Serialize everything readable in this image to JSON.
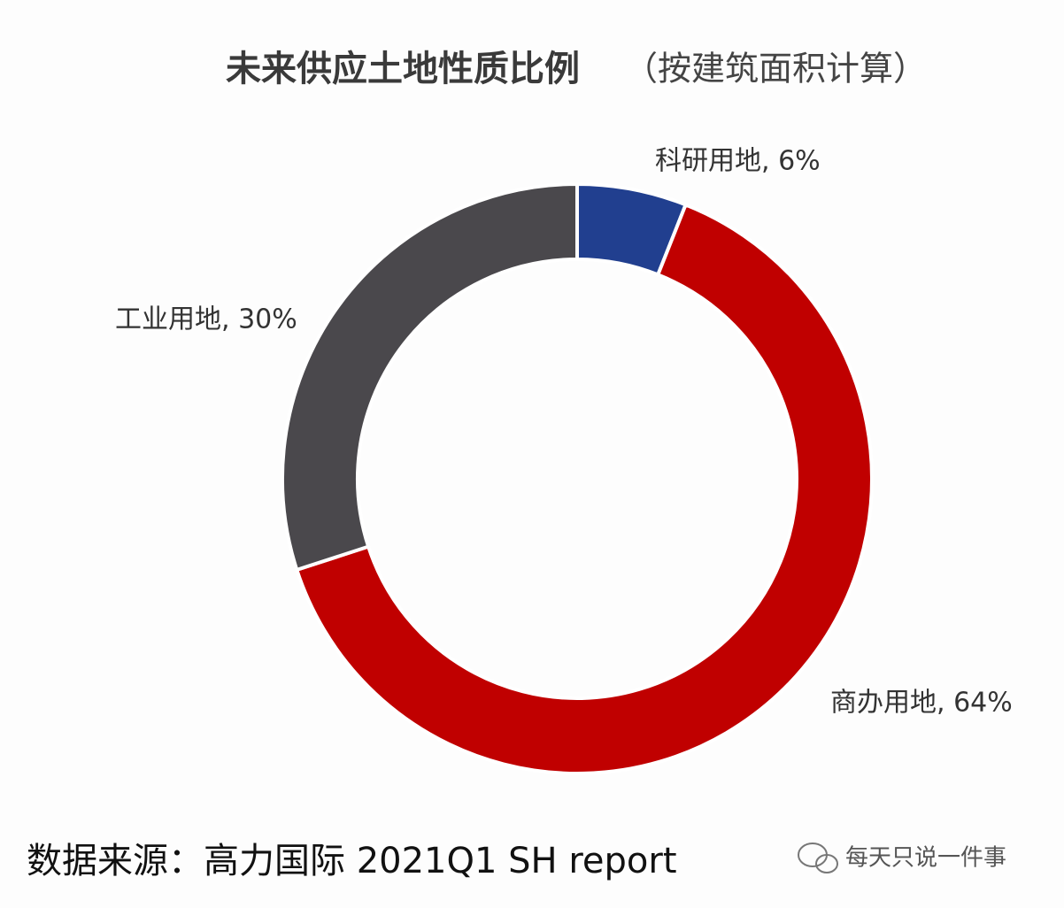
{
  "chart_data": {
    "type": "pie",
    "title": "未来供应土地性质比例",
    "subtitle": "（按建筑面积计算）",
    "values": [
      6,
      64,
      30
    ],
    "value_labels": [
      "科研用地, 6%",
      "商办用地, 64%",
      "工业用地, 30%"
    ],
    "colors": [
      "#213f8f",
      "#c00000",
      "#4a484c"
    ],
    "donut": true,
    "source": "数据来源：高力国际 2021Q1 SH report",
    "watermark": "每天只说一件事"
  }
}
